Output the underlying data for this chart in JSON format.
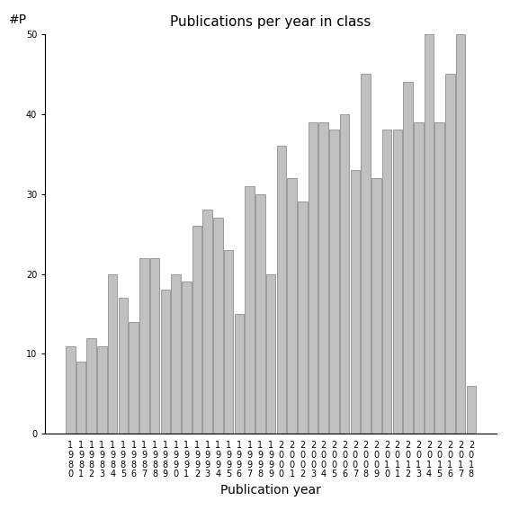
{
  "title": "Publications per year in class",
  "xlabel": "Publication year",
  "ylabel": "#P",
  "years": [
    "1980",
    "1981",
    "1982",
    "1983",
    "1984",
    "1985",
    "1986",
    "1987",
    "1988",
    "1989",
    "1990",
    "1991",
    "1992",
    "1993",
    "1994",
    "1995",
    "1996",
    "1997",
    "1998",
    "1999",
    "2000",
    "2001",
    "2002",
    "2003",
    "2004",
    "2005",
    "2006",
    "2007",
    "2008",
    "2009",
    "2010",
    "2011",
    "2012",
    "2013",
    "2014",
    "2015",
    "2016",
    "2017",
    "2018"
  ],
  "values": [
    11,
    9,
    12,
    11,
    20,
    17,
    14,
    22,
    22,
    18,
    20,
    19,
    26,
    28,
    27,
    23,
    15,
    31,
    30,
    20,
    36,
    32,
    29,
    39,
    39,
    38,
    40,
    33,
    45,
    32,
    38,
    38,
    44,
    39,
    50,
    39,
    45,
    50,
    6
  ],
  "bar_color": "#c0c0c0",
  "bar_edge_color": "#808080",
  "ylim": [
    0,
    50
  ],
  "yticks": [
    0,
    10,
    20,
    30,
    40,
    50
  ],
  "background_color": "#ffffff",
  "title_fontsize": 11,
  "axis_label_fontsize": 10,
  "tick_fontsize": 7
}
